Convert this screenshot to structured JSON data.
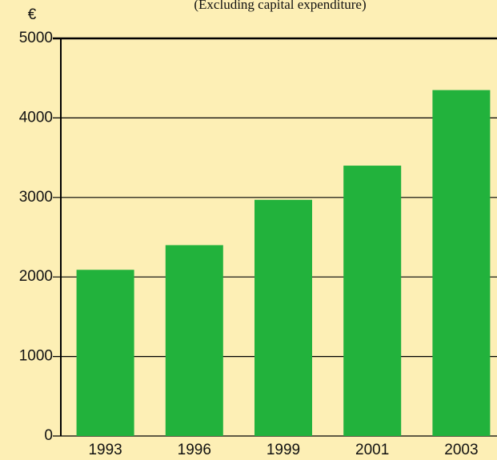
{
  "chart_data": {
    "type": "bar",
    "subtitle": "(Excluding capital expenditure)",
    "y_label": "€",
    "categories": [
      "1993",
      "1996",
      "1999",
      "2001",
      "2003"
    ],
    "values": [
      2090,
      2400,
      2970,
      3400,
      4350
    ],
    "color": "#22b23c",
    "ylim": [
      0,
      5000
    ],
    "yticks": [
      0,
      1000,
      2000,
      3000,
      4000,
      5000
    ],
    "grid": true
  }
}
